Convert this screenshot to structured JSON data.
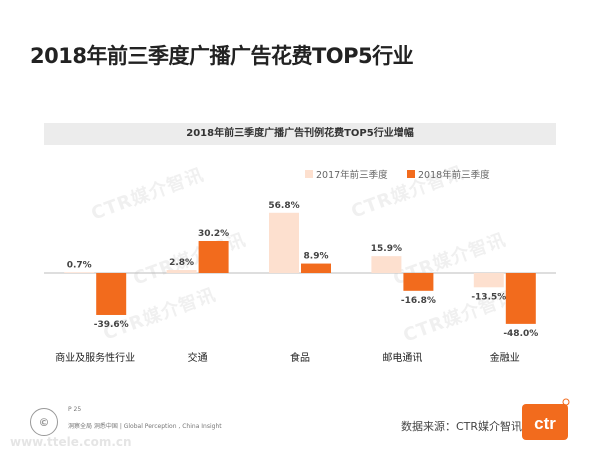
{
  "page_title": "2018年前三季度广播广告花费TOP5行业",
  "chart_data": {
    "type": "bar",
    "title": "2018年前三季度广播广告刊例花费TOP5行业增幅",
    "categories": [
      "商业及服务性行业",
      "交通",
      "食品",
      "邮电通讯",
      "金融业"
    ],
    "series": [
      {
        "name": "2017年前三季度",
        "values": [
          0.7,
          2.8,
          56.8,
          15.9,
          -13.5
        ],
        "labels": [
          "0.7%",
          "2.8%",
          "56.8%",
          "15.9%",
          "-13.5%"
        ],
        "color": "#fde0cf"
      },
      {
        "name": "2018年前三季度",
        "values": [
          -39.6,
          30.2,
          8.9,
          -16.8,
          -48.0
        ],
        "labels": [
          "-39.6%",
          "30.2%",
          "8.9%",
          "-16.8%",
          "-48.0%"
        ],
        "color": "#f26b1d"
      }
    ],
    "legend_position": "top-right",
    "grid": false
  },
  "watermark_text": "CTR媒介智讯",
  "footer": {
    "page_number": "P 25",
    "tagline": "洞察全局  洞悉中国 | Global Perception , China Insight",
    "source": "数据来源：CTR媒介智讯",
    "logo_text": "ctr",
    "url": "www.ttele.com.cn"
  },
  "colors": {
    "accent": "#f26b1d",
    "light": "#fde0cf"
  }
}
